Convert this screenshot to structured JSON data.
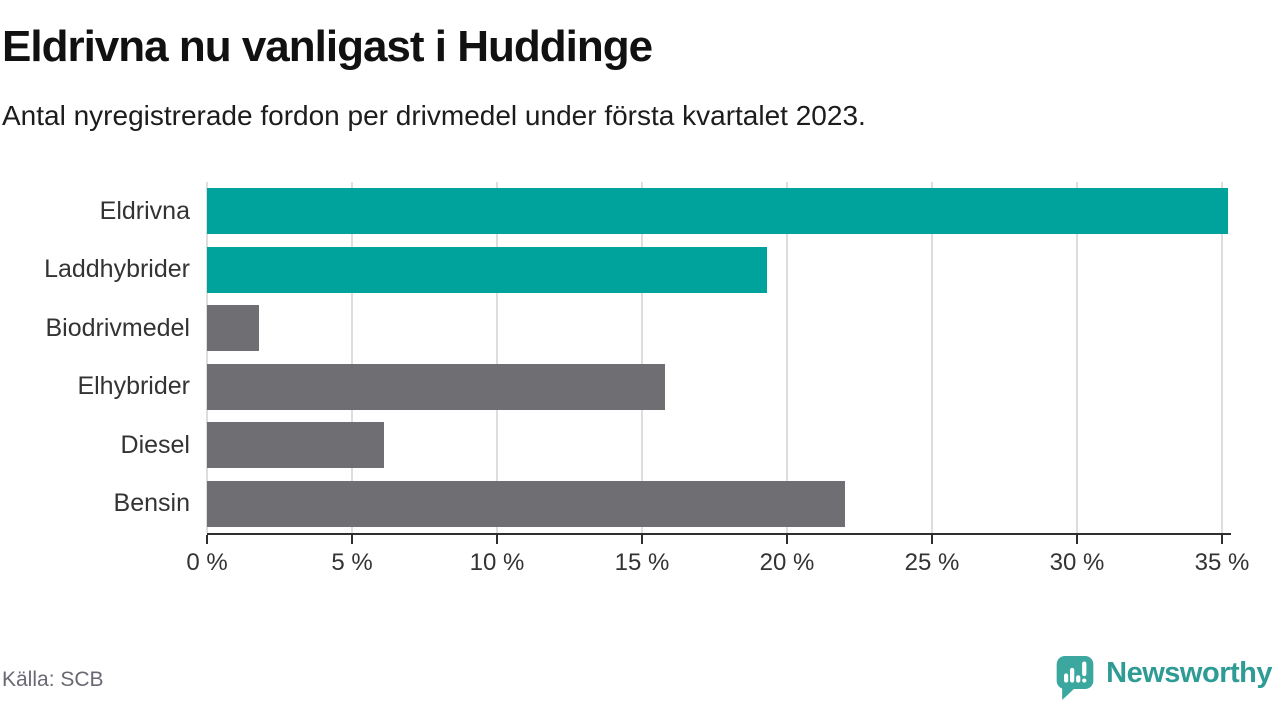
{
  "header": {
    "title": "Eldrivna nu vanligast i Huddinge",
    "subtitle": "Antal nyregistrerade fordon per drivmedel under första kvartalet 2023."
  },
  "footer": {
    "source": "Källa: SCB",
    "brand_name": "Newsworthy",
    "brand_icon": "newsworthy-speech-bubble-chart-icon"
  },
  "colors": {
    "teal": "#00A39B",
    "gray": "#6F6E73",
    "gridline": "#DDDDDD",
    "axis": "#2f2f2f",
    "text": "#333333",
    "logo_teal": "#3BA79F",
    "wordmark_teal": "#2E9B94"
  },
  "chart_data": {
    "type": "bar",
    "orientation": "horizontal",
    "title": "Eldrivna nu vanligast i Huddinge",
    "subtitle": "Antal nyregistrerade fordon per drivmedel under första kvartalet 2023.",
    "categories": [
      "Eldrivna",
      "Laddhybrider",
      "Biodrivmedel",
      "Elhybrider",
      "Diesel",
      "Bensin"
    ],
    "values": [
      35.2,
      19.3,
      1.8,
      15.8,
      6.1,
      22.0
    ],
    "unit": "%",
    "bar_colors": [
      "teal",
      "teal",
      "gray",
      "gray",
      "gray",
      "gray"
    ],
    "xticks": [
      "0 %",
      "5 %",
      "10 %",
      "15 %",
      "20 %",
      "25 %",
      "30 %",
      "35 %"
    ],
    "xtick_values": [
      0,
      5,
      10,
      15,
      20,
      25,
      30,
      35
    ],
    "xlim": [
      0,
      35.31
    ],
    "xlabel": "",
    "ylabel": "",
    "grid": "vertical",
    "legend": false
  }
}
